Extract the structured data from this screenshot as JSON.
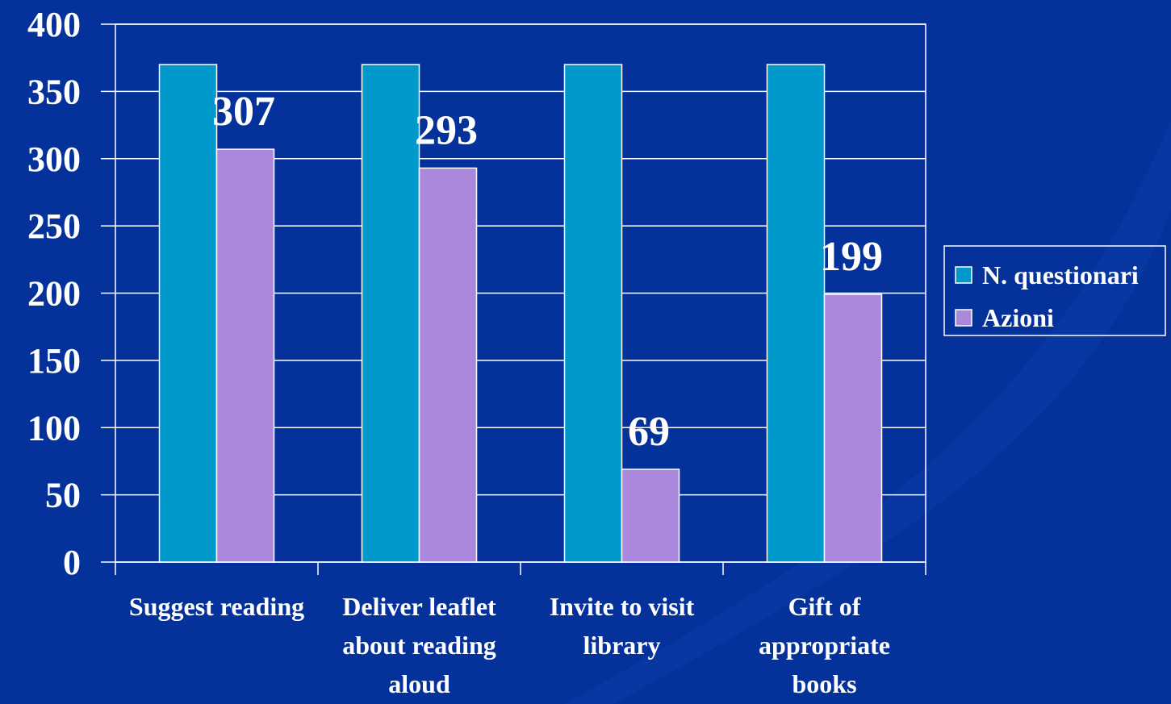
{
  "chart_data": {
    "type": "bar",
    "categories": [
      "Suggest reading",
      "Deliver leaflet about reading aloud",
      "Invite to visit library",
      "Gift of appropriate books"
    ],
    "series": [
      {
        "name": "N. questionari",
        "color": "#0099cc",
        "values": [
          370,
          370,
          370,
          370
        ]
      },
      {
        "name": "Azioni",
        "color": "#aa88dd",
        "values": [
          307,
          293,
          69,
          199
        ]
      }
    ],
    "ylim": [
      0,
      400
    ],
    "yticks": [
      0,
      50,
      100,
      150,
      200,
      250,
      300,
      350,
      400
    ],
    "grid": true,
    "legend": "right"
  }
}
